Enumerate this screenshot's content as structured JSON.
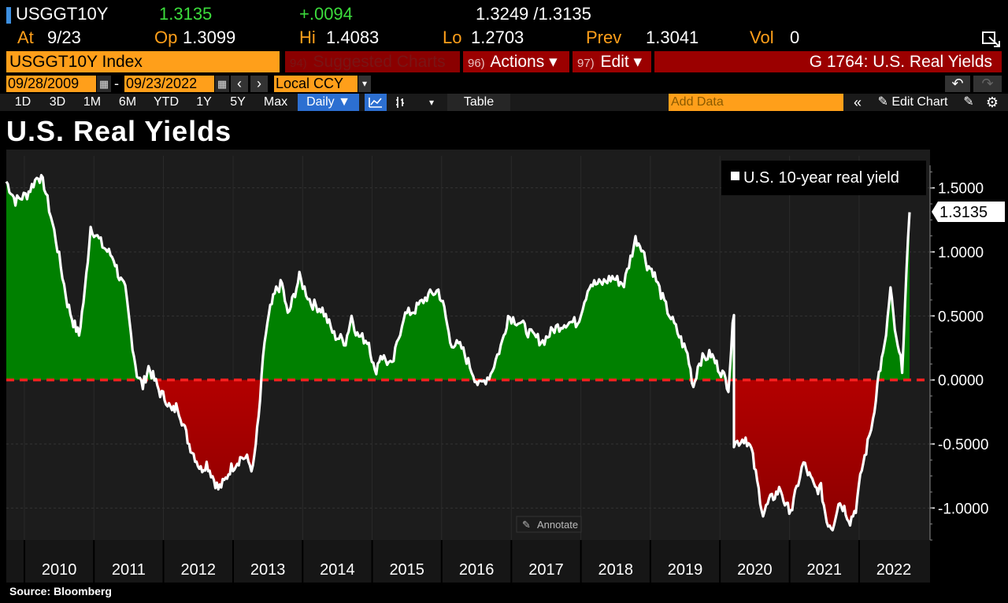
{
  "quote": {
    "ticker": "USGGT10Y",
    "last": "1.3135",
    "change": "+.0094",
    "bid_ask": "1.3249 /1.3135",
    "at_label": "At",
    "at_value": "9/23",
    "open_label": "Op",
    "open_value": "1.3099",
    "high_label": "Hi",
    "high_value": "1.4083",
    "low_label": "Lo",
    "low_value": "1.2703",
    "prev_label": "Prev",
    "prev_value": "1.3041",
    "vol_label": "Vol",
    "vol_value": "0"
  },
  "command_bar": {
    "index": "USGGT10Y Index",
    "suggested_num": "94)",
    "suggested": "Suggested Charts",
    "actions_num": "96)",
    "actions": "Actions ▾",
    "edit_num": "97)",
    "edit": "Edit ▾",
    "page_title": "G 1764: U.S. Real Yields"
  },
  "date_range": {
    "start": "09/28/2009",
    "separator": "-",
    "end": "09/23/2022",
    "currency": "Local CCY"
  },
  "toolbar": {
    "periods": [
      "1D",
      "3D",
      "1M",
      "6M",
      "YTD",
      "1Y",
      "5Y",
      "Max"
    ],
    "frequency": "Daily ▼",
    "table": "Table",
    "add_data_placeholder": "Add Data",
    "edit_chart": "Edit Chart"
  },
  "chart_title": "U.S. Real Yields",
  "source": "Source:  Bloomberg",
  "colors": {
    "positive_fill": "#008000",
    "negative_fill": "#8b0000",
    "zero_line": "#ff2020",
    "series_line": "#ffffff",
    "plot_bg": "#1c1c1c",
    "accent_orange": "#ff9f1a",
    "header_red": "#9b0000"
  },
  "chart_data": {
    "type": "area",
    "title": "U.S. Real Yields",
    "legend_position": "top-right",
    "legend": [
      "U.S. 10-year real yield"
    ],
    "x_range": [
      "09/28/2009",
      "09/23/2022"
    ],
    "x_ticks": [
      "2010",
      "2011",
      "2012",
      "2013",
      "2014",
      "2015",
      "2016",
      "2017",
      "2018",
      "2019",
      "2020",
      "2021",
      "2022"
    ],
    "y_ticks": [
      "1.5000",
      "1.0000",
      "0.5000",
      "0.0000",
      "-0.5000",
      "-1.0000"
    ],
    "ylim": [
      -1.25,
      1.75
    ],
    "reference_line": 0,
    "last_value_label": "1.3135",
    "annotate_label": "Annotate",
    "series": [
      {
        "name": "U.S. 10-year real yield",
        "points": [
          [
            "2009-09",
            1.55
          ],
          [
            "2009-11",
            1.4
          ],
          [
            "2010-01",
            1.45
          ],
          [
            "2010-03",
            1.6
          ],
          [
            "2010-04",
            1.52
          ],
          [
            "2010-06",
            1.1
          ],
          [
            "2010-08",
            0.6
          ],
          [
            "2010-09",
            0.45
          ],
          [
            "2010-10",
            0.35
          ],
          [
            "2010-11",
            0.7
          ],
          [
            "2010-12",
            1.2
          ],
          [
            "2011-02",
            1.05
          ],
          [
            "2011-04",
            0.95
          ],
          [
            "2011-05",
            0.8
          ],
          [
            "2011-06",
            0.7
          ],
          [
            "2011-07",
            0.35
          ],
          [
            "2011-08",
            0.05
          ],
          [
            "2011-09",
            -0.05
          ],
          [
            "2011-10",
            0.1
          ],
          [
            "2011-11",
            0.0
          ],
          [
            "2011-12",
            -0.1
          ],
          [
            "2012-01",
            -0.15
          ],
          [
            "2012-02",
            -0.25
          ],
          [
            "2012-03",
            -0.2
          ],
          [
            "2012-04",
            -0.35
          ],
          [
            "2012-05",
            -0.5
          ],
          [
            "2012-06",
            -0.6
          ],
          [
            "2012-07",
            -0.7
          ],
          [
            "2012-08",
            -0.65
          ],
          [
            "2012-09",
            -0.75
          ],
          [
            "2012-10",
            -0.85
          ],
          [
            "2012-11",
            -0.8
          ],
          [
            "2012-12",
            -0.7
          ],
          [
            "2013-01",
            -0.65
          ],
          [
            "2013-02",
            -0.6
          ],
          [
            "2013-03",
            -0.62
          ],
          [
            "2013-04",
            -0.7
          ],
          [
            "2013-05",
            -0.3
          ],
          [
            "2013-06",
            0.3
          ],
          [
            "2013-07",
            0.55
          ],
          [
            "2013-08",
            0.7
          ],
          [
            "2013-09",
            0.75
          ],
          [
            "2013-10",
            0.5
          ],
          [
            "2013-11",
            0.65
          ],
          [
            "2013-12",
            0.8
          ],
          [
            "2014-02",
            0.6
          ],
          [
            "2014-04",
            0.55
          ],
          [
            "2014-06",
            0.35
          ],
          [
            "2014-08",
            0.3
          ],
          [
            "2014-09",
            0.5
          ],
          [
            "2014-10",
            0.35
          ],
          [
            "2014-12",
            0.3
          ],
          [
            "2015-01",
            0.05
          ],
          [
            "2015-02",
            0.2
          ],
          [
            "2015-04",
            0.1
          ],
          [
            "2015-06",
            0.5
          ],
          [
            "2015-08",
            0.55
          ],
          [
            "2015-10",
            0.65
          ],
          [
            "2015-12",
            0.7
          ],
          [
            "2016-01",
            0.55
          ],
          [
            "2016-02",
            0.3
          ],
          [
            "2016-04",
            0.25
          ],
          [
            "2016-06",
            0.05
          ],
          [
            "2016-07",
            -0.05
          ],
          [
            "2016-09",
            0.05
          ],
          [
            "2016-11",
            0.3
          ],
          [
            "2016-12",
            0.5
          ],
          [
            "2017-02",
            0.45
          ],
          [
            "2017-04",
            0.35
          ],
          [
            "2017-06",
            0.3
          ],
          [
            "2017-08",
            0.4
          ],
          [
            "2017-10",
            0.45
          ],
          [
            "2017-12",
            0.45
          ],
          [
            "2018-02",
            0.75
          ],
          [
            "2018-04",
            0.75
          ],
          [
            "2018-06",
            0.8
          ],
          [
            "2018-08",
            0.75
          ],
          [
            "2018-10",
            1.1
          ],
          [
            "2018-11",
            1.05
          ],
          [
            "2018-12",
            0.9
          ],
          [
            "2019-01",
            0.85
          ],
          [
            "2019-03",
            0.6
          ],
          [
            "2019-05",
            0.4
          ],
          [
            "2019-07",
            0.2
          ],
          [
            "2019-08",
            -0.05
          ],
          [
            "2019-09",
            0.15
          ],
          [
            "2019-11",
            0.2
          ],
          [
            "2019-12",
            0.12
          ],
          [
            "2020-01",
            0.05
          ],
          [
            "2020-02",
            -0.05
          ],
          [
            "2020-03",
            0.55
          ],
          [
            "2020-03",
            -0.5
          ],
          [
            "2020-05",
            -0.45
          ],
          [
            "2020-06",
            -0.55
          ],
          [
            "2020-07",
            -0.8
          ],
          [
            "2020-08",
            -1.05
          ],
          [
            "2020-09",
            -0.95
          ],
          [
            "2020-10",
            -0.9
          ],
          [
            "2020-11",
            -0.85
          ],
          [
            "2020-12",
            -1.0
          ],
          [
            "2021-01",
            -1.0
          ],
          [
            "2021-02",
            -0.8
          ],
          [
            "2021-03",
            -0.65
          ],
          [
            "2021-04",
            -0.75
          ],
          [
            "2021-05",
            -0.85
          ],
          [
            "2021-06",
            -0.85
          ],
          [
            "2021-07",
            -1.1
          ],
          [
            "2021-08",
            -1.15
          ],
          [
            "2021-09",
            -0.95
          ],
          [
            "2021-10",
            -1.0
          ],
          [
            "2021-11",
            -1.1
          ],
          [
            "2021-12",
            -1.0
          ],
          [
            "2022-01",
            -0.7
          ],
          [
            "2022-02",
            -0.5
          ],
          [
            "2022-03",
            -0.3
          ],
          [
            "2022-04",
            0.05
          ],
          [
            "2022-05",
            0.25
          ],
          [
            "2022-06",
            0.7
          ],
          [
            "2022-07",
            0.3
          ],
          [
            "2022-08",
            0.1
          ],
          [
            "2022-09",
            1.31
          ]
        ]
      }
    ]
  }
}
